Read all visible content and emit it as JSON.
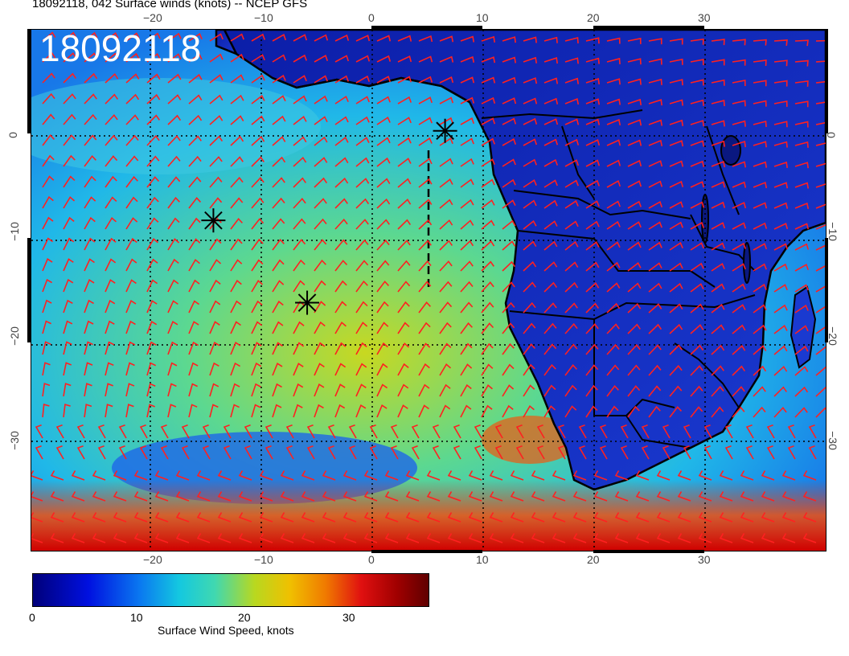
{
  "title": "18092118, 042 Surface winds (knots) -- NCEP GFS",
  "stamp": "18092118",
  "lon_ticks": [
    "−20",
    "−10",
    "0",
    "10",
    "20",
    "30"
  ],
  "lat_ticks": [
    "0",
    "−10",
    "−20",
    "−30"
  ],
  "colorbar": {
    "ticks": [
      "0",
      "10",
      "20",
      "30"
    ],
    "label": "Surface Wind Speed, knots",
    "colors": [
      "#00007a",
      "#0010e0",
      "#0a78f0",
      "#14c8e0",
      "#40d8b0",
      "#b8d820",
      "#f0c000",
      "#f07a00",
      "#e01010",
      "#a00000",
      "#600000"
    ]
  },
  "map": {
    "lon_range": [
      -31,
      41
    ],
    "lat_range": [
      -40,
      10
    ],
    "wind_barb_color": "#ff2020",
    "coast_color": "#000000"
  },
  "markers": [
    {
      "name": "star-marker",
      "lon": 6.5,
      "lat": 0.3
    },
    {
      "name": "star-marker",
      "lon": -14.5,
      "lat": -8.3
    },
    {
      "name": "star-marker",
      "lon": -6.0,
      "lat": -16.2
    }
  ]
}
